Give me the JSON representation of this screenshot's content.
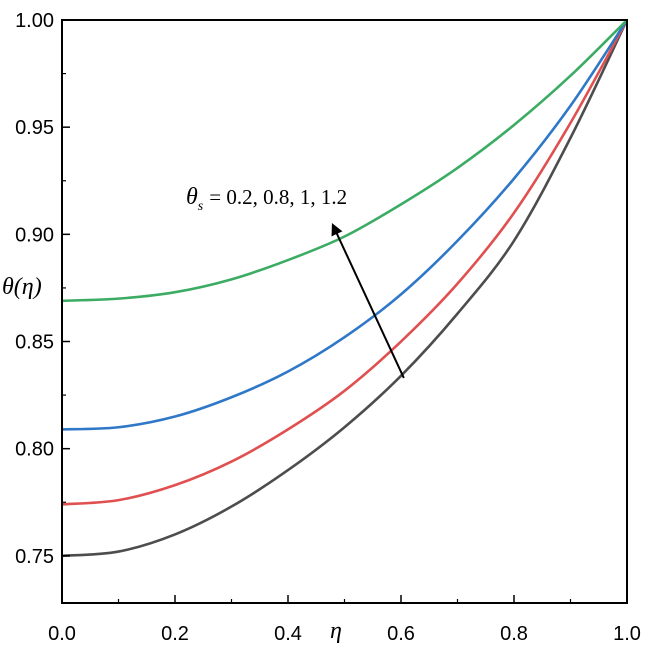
{
  "chart_data": {
    "type": "line",
    "xlabel": "η",
    "ylabel": "θ(η)",
    "xlim": [
      0.0,
      1.0
    ],
    "ylim": [
      0.728,
      1.0
    ],
    "x_ticks": [
      "0.0",
      "0.2",
      "0.4",
      "0.6",
      "0.8",
      "1.0"
    ],
    "y_ticks": [
      "0.75",
      "0.80",
      "0.85",
      "0.90",
      "0.95",
      "1.00"
    ],
    "annotation": {
      "symbol": "θ",
      "subscript": "s",
      "text": "= 0.2, 0.8, 1, 1.2"
    },
    "grid": false,
    "series": [
      {
        "color": "#4d4d4d",
        "x": [
          0.0,
          0.1,
          0.2,
          0.3,
          0.4,
          0.5,
          0.6,
          0.7,
          0.8,
          0.9,
          1.0
        ],
        "y": [
          0.75,
          0.752,
          0.76,
          0.773,
          0.79,
          0.81,
          0.834,
          0.863,
          0.897,
          0.945,
          1.0
        ]
      },
      {
        "color": "#e05050",
        "x": [
          0.0,
          0.1,
          0.2,
          0.3,
          0.4,
          0.5,
          0.6,
          0.7,
          0.8,
          0.9,
          1.0
        ],
        "y": [
          0.774,
          0.776,
          0.783,
          0.794,
          0.809,
          0.827,
          0.85,
          0.877,
          0.91,
          0.952,
          1.0
        ]
      },
      {
        "color": "#2f78c8",
        "x": [
          0.0,
          0.1,
          0.2,
          0.3,
          0.4,
          0.5,
          0.6,
          0.7,
          0.8,
          0.9,
          1.0
        ],
        "y": [
          0.809,
          0.81,
          0.815,
          0.824,
          0.836,
          0.852,
          0.872,
          0.897,
          0.926,
          0.96,
          1.0
        ]
      },
      {
        "color": "#3cac64",
        "x": [
          0.0,
          0.1,
          0.2,
          0.3,
          0.4,
          0.5,
          0.6,
          0.7,
          0.8,
          0.9,
          1.0
        ],
        "y": [
          0.869,
          0.87,
          0.873,
          0.879,
          0.888,
          0.899,
          0.914,
          0.931,
          0.951,
          0.974,
          1.0
        ]
      }
    ],
    "arrow": {
      "from": [
        0.605,
        0.833
      ],
      "to": [
        0.48,
        0.904
      ]
    }
  }
}
